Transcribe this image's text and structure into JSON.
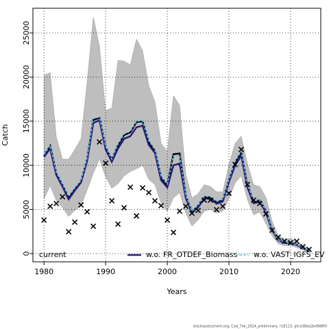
{
  "chart_data": {
    "type": "line",
    "ylabel": "Catch",
    "xlabel": "Years",
    "footer": "stockassessment.org, Cod_7ek_2024_preliminary, r18113, git:e38aa2b4986f0",
    "x": [
      1980,
      1981,
      1982,
      1983,
      1984,
      1985,
      1986,
      1987,
      1988,
      1989,
      1990,
      1991,
      1992,
      1993,
      1994,
      1995,
      1996,
      1997,
      1998,
      1999,
      2000,
      2001,
      2002,
      2003,
      2004,
      2005,
      2006,
      2007,
      2008,
      2009,
      2010,
      2011,
      2012,
      2013,
      2014,
      2015,
      2016,
      2017,
      2018,
      2019,
      2020,
      2021,
      2022,
      2023
    ],
    "xlim": [
      1978.2,
      2024.9
    ],
    "xticks": [
      1980,
      1990,
      2000,
      2010,
      2020
    ],
    "ylim": [
      -932,
      27795
    ],
    "yticks": [
      0,
      5000,
      10000,
      15000,
      20000,
      25000
    ],
    "grid": true,
    "legend": "bottom",
    "band": {
      "color": "#bebebe",
      "upper": [
        20200,
        20500,
        13200,
        10700,
        10700,
        11800,
        13000,
        19500,
        26800,
        23500,
        16200,
        16500,
        21900,
        21800,
        21400,
        24300,
        23000,
        19000,
        17200,
        12500,
        11600,
        17900,
        16800,
        9000,
        6300,
        6800,
        7800,
        7600,
        7000,
        7000,
        10100,
        12500,
        13300,
        10200,
        7800,
        7600,
        6400,
        3700,
        2000,
        1700,
        1700,
        1400,
        900,
        600
      ],
      "lower": [
        6200,
        7700,
        6000,
        5200,
        4200,
        4900,
        5400,
        7200,
        9100,
        10700,
        8700,
        7400,
        7900,
        8800,
        9300,
        9600,
        10000,
        8400,
        7800,
        5700,
        4800,
        6300,
        6900,
        4600,
        3100,
        3800,
        4800,
        5000,
        4600,
        4800,
        6200,
        8000,
        8800,
        6100,
        4400,
        4700,
        3400,
        2000,
        1100,
        900,
        900,
        700,
        400,
        200
      ]
    },
    "series": [
      {
        "name": "current",
        "color": "#000000",
        "linestyle": "solid",
        "values": [
          11100,
          12200,
          9080,
          7760,
          6370,
          7300,
          8150,
          10700,
          15140,
          15370,
          12030,
          10640,
          12270,
          13430,
          13740,
          14900,
          14980,
          12650,
          11650,
          8620,
          7760,
          11260,
          11340,
          6520,
          4740,
          5430,
          6440,
          6370,
          5820,
          6060,
          8310,
          10330,
          11490,
          7760,
          5900,
          6060,
          4810,
          2720,
          1550,
          1240,
          1240,
          1010,
          620,
          310
        ]
      },
      {
        "name": "w.o. FR_OTDEF_Biomass",
        "color": "#2b1a7a",
        "linestyle": "solid",
        "values": [
          10950,
          11900,
          8900,
          7600,
          6150,
          7150,
          8050,
          10500,
          14800,
          15100,
          11800,
          10400,
          11900,
          13000,
          13300,
          14300,
          14500,
          12300,
          11400,
          8300,
          7500,
          10000,
          10200,
          6300,
          4600,
          5250,
          6250,
          6200,
          5650,
          5900,
          8100,
          10000,
          11100,
          7500,
          5700,
          5850,
          4650,
          2650,
          1500,
          1200,
          1200,
          980,
          600,
          300
        ]
      },
      {
        "name": "w.o. VAST_IGFS_EV",
        "color": "#5bc8ea",
        "linestyle": "dashed",
        "values": [
          11200,
          12250,
          9200,
          7900,
          6500,
          7450,
          8300,
          10850,
          15300,
          15450,
          12150,
          10700,
          12400,
          13550,
          13850,
          15000,
          15050,
          12800,
          11750,
          8750,
          7850,
          11100,
          11200,
          6600,
          4800,
          5500,
          6500,
          6450,
          5900,
          6150,
          8400,
          10450,
          11600,
          7850,
          5950,
          6100,
          4850,
          2750,
          1570,
          1260,
          1260,
          1020,
          630,
          320
        ]
      }
    ],
    "observed": {
      "marker": "x",
      "color": "#000000",
      "values": [
        3800,
        5360,
        5670,
        6440,
        2480,
        3570,
        5510,
        4740,
        3100,
        12650,
        10250,
        5980,
        3340,
        5200,
        7530,
        4270,
        7450,
        6910,
        5980,
        5430,
        3800,
        2400,
        4810,
        5360,
        4580,
        4890,
        6060,
        6060,
        4970,
        5360,
        6830,
        10090,
        11800,
        7840,
        6060,
        5670,
        4500,
        2640,
        1860,
        1400,
        1240,
        1400,
        780,
        470
      ]
    }
  }
}
